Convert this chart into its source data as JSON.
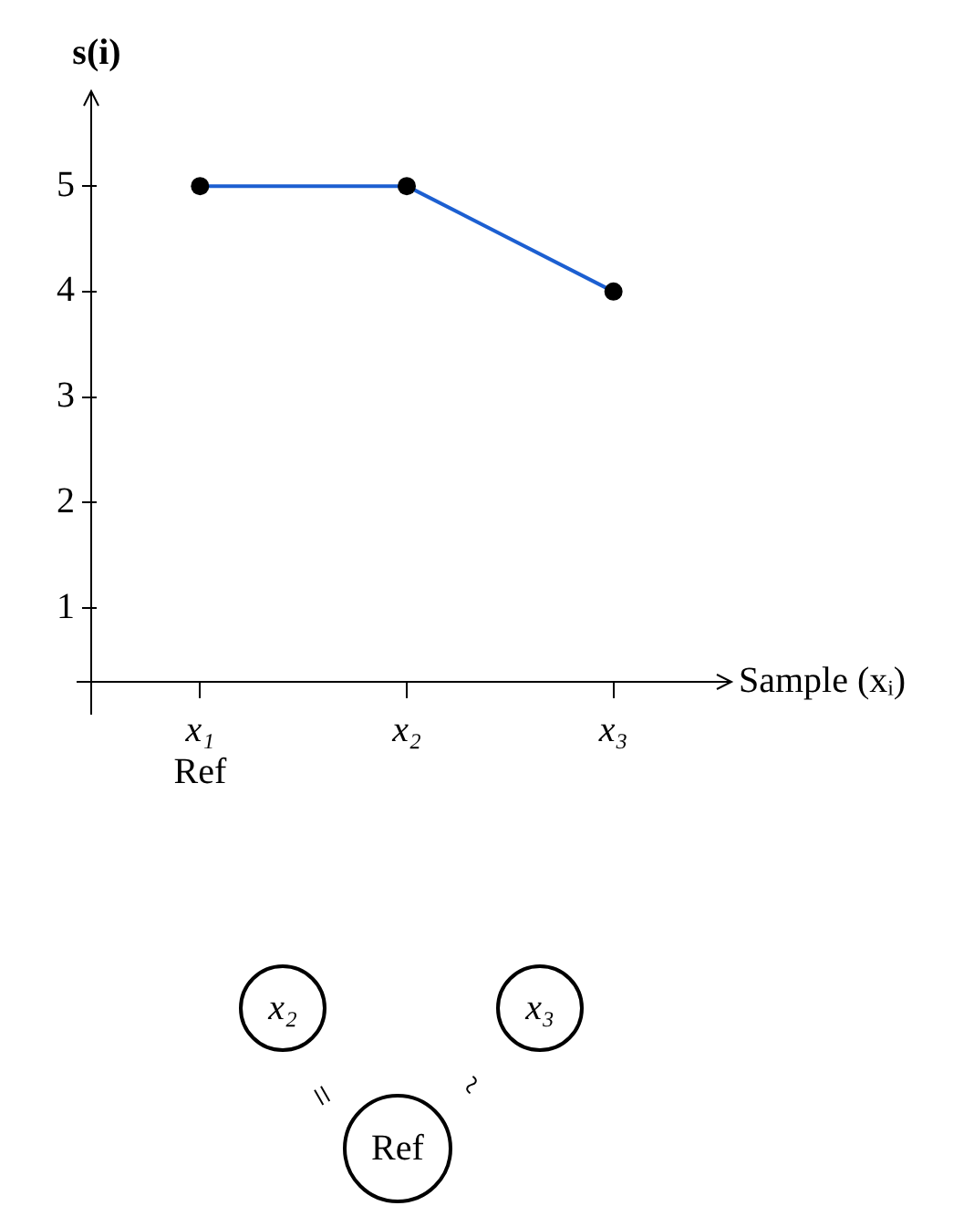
{
  "chart_data": {
    "type": "line",
    "xlabel": "Sample (xᵢ)",
    "ylabel": "s(i)",
    "categories": [
      "x₁",
      "x₂",
      "x₃"
    ],
    "series": [
      {
        "color": "#1c5fd1",
        "values": [
          5,
          5,
          4
        ]
      }
    ],
    "ylim": [
      0.3,
      5.9
    ],
    "yticks": [
      1,
      2,
      3,
      4,
      5
    ],
    "marker": "circle",
    "line_style": "solid",
    "grid": false,
    "annotations": [
      "Ref",
      "x₂",
      "x₃",
      "=",
      "~",
      "Ref"
    ]
  }
}
